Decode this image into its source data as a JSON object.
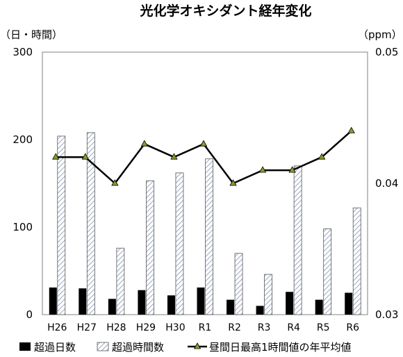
{
  "chart_data": {
    "type": "bar",
    "title": "光化学オキシダント経年変化",
    "y_left_unit": "（日・時間）",
    "y_right_unit": "（ppm）",
    "categories": [
      "H26",
      "H27",
      "H28",
      "H29",
      "H30",
      "R1",
      "R2",
      "R3",
      "R4",
      "R5",
      "R6"
    ],
    "y_left_ticks": [
      "0",
      "100",
      "200",
      "300"
    ],
    "y_right_ticks": [
      "0.03",
      "0.04",
      "0.05"
    ],
    "ylim_left": [
      0,
      300
    ],
    "ylim_right": [
      0.03,
      0.05
    ],
    "grid": false,
    "legend_position": "bottom",
    "series": [
      {
        "name": "超過日数",
        "kind": "bar",
        "axis": "left",
        "color": "#000000",
        "values": [
          31,
          30,
          18,
          28,
          22,
          31,
          17,
          10,
          26,
          17,
          25
        ]
      },
      {
        "name": "超過時間数",
        "kind": "bar",
        "axis": "left",
        "pattern": "hatch",
        "values": [
          204,
          208,
          76,
          153,
          162,
          178,
          70,
          46,
          170,
          98,
          122
        ]
      },
      {
        "name": "昼間日最高1時間値の年平均値",
        "kind": "line",
        "axis": "right",
        "color": "#000000",
        "marker_color": "#8a9a2a",
        "values": [
          0.042,
          0.042,
          0.04,
          0.043,
          0.042,
          0.043,
          0.04,
          0.041,
          0.041,
          0.042,
          0.044
        ]
      }
    ]
  }
}
